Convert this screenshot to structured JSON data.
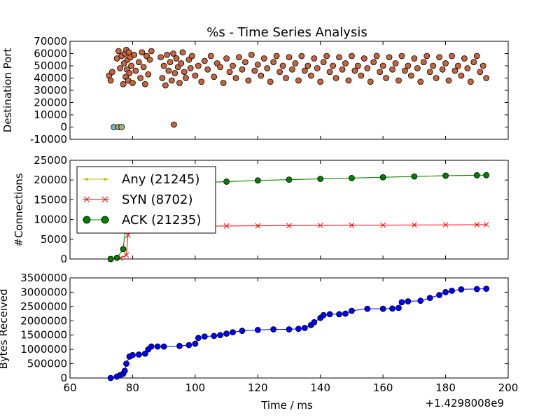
{
  "chart_data": [
    {
      "type": "scatter",
      "title": "%s - Time Series Analysis",
      "ylabel": "Destination Port",
      "xlim": [
        60,
        200
      ],
      "ylim": [
        -10000,
        70000
      ],
      "yticks": [
        "-10000",
        "0",
        "10000",
        "20000",
        "30000",
        "40000",
        "50000",
        "60000",
        "70000"
      ],
      "series": [
        {
          "color": "#c8643c",
          "points": [
            [
              72.5,
              42000
            ],
            [
              73,
              38000
            ],
            [
              73.5,
              45000
            ],
            [
              75,
              56000
            ],
            [
              75.5,
              62000
            ],
            [
              76,
              48000
            ],
            [
              76.5,
              58000
            ],
            [
              77,
              35000
            ],
            [
              77.3,
              52000
            ],
            [
              77.6,
              60000
            ],
            [
              77.8,
              41000
            ],
            [
              78,
              63000
            ],
            [
              78.2,
              47000
            ],
            [
              78.4,
              55000
            ],
            [
              78.6,
              38000
            ],
            [
              78.8,
              61000
            ],
            [
              79,
              44000
            ],
            [
              79.3,
              57000
            ],
            [
              79.6,
              50000
            ],
            [
              80,
              36000
            ],
            [
              80.5,
              59000
            ],
            [
              81,
              46000
            ],
            [
              82,
              53000
            ],
            [
              82.5,
              40000
            ],
            [
              83,
              61000
            ],
            [
              83.5,
              49000
            ],
            [
              84,
              35000
            ],
            [
              84.5,
              58000
            ],
            [
              85,
              43000
            ],
            [
              85.5,
              55000
            ],
            [
              86,
              62000
            ],
            [
              89,
              57000
            ],
            [
              89.5,
              40000
            ],
            [
              90,
              50000
            ],
            [
              90.5,
              34000
            ],
            [
              91,
              59000
            ],
            [
              91.5,
              46000
            ],
            [
              92,
              53000
            ],
            [
              92.5,
              38000
            ],
            [
              93,
              60000
            ],
            [
              93.2,
              2000
            ],
            [
              93.5,
              44000
            ],
            [
              94,
              56000
            ],
            [
              94.5,
              49000
            ],
            [
              95,
              36000
            ],
            [
              95.5,
              52000
            ],
            [
              96,
              61000
            ],
            [
              96.5,
              45000
            ],
            [
              97,
              40000
            ],
            [
              98,
              55000
            ],
            [
              98.5,
              48000
            ],
            [
              99,
              58000
            ],
            [
              100,
              42000
            ],
            [
              101,
              50000
            ],
            [
              102,
              37000
            ],
            [
              103,
              54000
            ],
            [
              104,
              47000
            ],
            [
              105,
              58000
            ],
            [
              106,
              41000
            ],
            [
              107,
              52000
            ],
            [
              108,
              49000
            ],
            [
              109,
              36000
            ],
            [
              110,
              56000
            ],
            [
              111,
              45000
            ],
            [
              112,
              50000
            ],
            [
              113,
              40000
            ],
            [
              114,
              57000
            ],
            [
              115,
              47000
            ],
            [
              116,
              53000
            ],
            [
              117,
              38000
            ],
            [
              118,
              59000
            ],
            [
              119,
              46000
            ],
            [
              120,
              51000
            ],
            [
              121,
              42000
            ],
            [
              122,
              56000
            ],
            [
              123,
              48000
            ],
            [
              124,
              37000
            ],
            [
              125,
              53000
            ],
            [
              126,
              58000
            ],
            [
              127,
              45000
            ],
            [
              128,
              50000
            ],
            [
              129,
              40000
            ],
            [
              130,
              57000
            ],
            [
              131,
              47000
            ],
            [
              132,
              52000
            ],
            [
              133,
              38000
            ],
            [
              134,
              58000
            ],
            [
              135,
              46000
            ],
            [
              136,
              50000
            ],
            [
              137,
              42000
            ],
            [
              138,
              56000
            ],
            [
              139,
              48000
            ],
            [
              140,
              37000
            ],
            [
              141,
              53000
            ],
            [
              142,
              58000
            ],
            [
              143,
              45000
            ],
            [
              144,
              50000
            ],
            [
              145,
              40000
            ],
            [
              146,
              57000
            ],
            [
              147,
              47000
            ],
            [
              148,
              52000
            ],
            [
              149,
              38000
            ],
            [
              150,
              58000
            ],
            [
              151,
              46000
            ],
            [
              152,
              50000
            ],
            [
              153,
              42000
            ],
            [
              154,
              56000
            ],
            [
              155,
              48000
            ],
            [
              156,
              37000
            ],
            [
              157,
              53000
            ],
            [
              158,
              58000
            ],
            [
              159,
              45000
            ],
            [
              160,
              50000
            ],
            [
              161,
              40000
            ],
            [
              162,
              57000
            ],
            [
              163,
              47000
            ],
            [
              164,
              52000
            ],
            [
              165,
              38000
            ],
            [
              166,
              58000
            ],
            [
              167,
              46000
            ],
            [
              168,
              50000
            ],
            [
              169,
              42000
            ],
            [
              170,
              56000
            ],
            [
              171,
              48000
            ],
            [
              172,
              37000
            ],
            [
              173,
              53000
            ],
            [
              174,
              58000
            ],
            [
              175,
              45000
            ],
            [
              176,
              50000
            ],
            [
              177,
              40000
            ],
            [
              178,
              57000
            ],
            [
              179,
              47000
            ],
            [
              180,
              52000
            ],
            [
              181,
              38000
            ],
            [
              182,
              58000
            ],
            [
              183,
              46000
            ],
            [
              184,
              50000
            ],
            [
              185,
              42000
            ],
            [
              186,
              56000
            ],
            [
              187,
              48000
            ],
            [
              188,
              37000
            ],
            [
              189,
              53000
            ],
            [
              190,
              58000
            ],
            [
              191,
              45000
            ],
            [
              192,
              50000
            ],
            [
              193,
              40000
            ]
          ]
        },
        {
          "color": "#6ab0d8",
          "points": [
            [
              74,
              0
            ]
          ]
        },
        {
          "color": "#c8a04a",
          "points": [
            [
              75.5,
              0
            ]
          ]
        },
        {
          "color": "#8fbc8f",
          "points": [
            [
              76.5,
              0
            ]
          ]
        }
      ]
    },
    {
      "type": "line",
      "ylabel": "#Connections",
      "xlim": [
        60,
        200
      ],
      "ylim": [
        0,
        25000
      ],
      "yticks": [
        "0",
        "5000",
        "10000",
        "15000",
        "20000",
        "25000"
      ],
      "legend": {
        "placement": "top-left"
      },
      "series": [
        {
          "name": "Any (21245)",
          "color": "#bfbf00",
          "marker": "dot",
          "x": [
            73,
            75,
            77,
            78,
            79,
            85,
            90,
            95,
            100,
            110,
            120,
            130,
            140,
            150,
            160,
            170,
            180,
            190,
            193
          ],
          "values": [
            0,
            300,
            2500,
            10000,
            15000,
            17500,
            18500,
            19000,
            19300,
            19600,
            19900,
            20100,
            20300,
            20500,
            20700,
            20900,
            21100,
            21200,
            21245
          ]
        },
        {
          "name": "SYN (8702)",
          "color": "#ff0000",
          "marker": "x",
          "x": [
            73,
            76,
            78,
            78.5,
            79,
            85,
            90,
            95,
            100,
            110,
            120,
            130,
            140,
            150,
            160,
            170,
            180,
            190,
            193
          ],
          "values": [
            0,
            200,
            1000,
            6000,
            8000,
            8200,
            8250,
            8300,
            8300,
            8350,
            8400,
            8450,
            8500,
            8550,
            8580,
            8620,
            8660,
            8690,
            8702
          ]
        },
        {
          "name": "ACK (21235)",
          "color": "#008000",
          "marker": "o",
          "x": [
            73,
            75,
            77,
            78,
            79,
            85,
            90,
            95,
            100,
            110,
            120,
            130,
            140,
            150,
            160,
            170,
            180,
            190,
            193
          ],
          "values": [
            0,
            300,
            2500,
            10000,
            15000,
            17500,
            18500,
            19000,
            19300,
            19600,
            19900,
            20100,
            20300,
            20500,
            20700,
            20900,
            21100,
            21200,
            21235
          ]
        }
      ]
    },
    {
      "type": "line",
      "ylabel": "Bytes Received",
      "xlabel": "Time / ms",
      "offset_label": "+1.4298008e9",
      "xlim": [
        60,
        200
      ],
      "ylim": [
        0,
        3500000
      ],
      "xticks": [
        "60",
        "80",
        "100",
        "120",
        "140",
        "160",
        "180",
        "200"
      ],
      "yticks": [
        "0",
        "500000",
        "1000000",
        "1500000",
        "2000000",
        "2500000",
        "3000000",
        "3500000"
      ],
      "series": [
        {
          "color": "#0000ff",
          "marker": "o",
          "x": [
            73,
            75,
            76,
            77,
            77.5,
            78,
            79,
            80,
            82,
            84,
            85,
            86,
            88,
            90,
            95,
            98,
            100,
            101,
            103,
            106,
            108,
            110,
            112,
            115,
            120,
            125,
            130,
            133,
            135,
            137,
            138,
            140,
            141,
            143,
            146,
            148,
            150,
            155,
            160,
            163,
            165,
            166,
            168,
            172,
            175,
            178,
            180,
            182,
            185,
            190,
            193
          ],
          "values": [
            0,
            50000,
            100000,
            150000,
            250000,
            500000,
            750000,
            800000,
            820000,
            850000,
            1000000,
            1100000,
            1100000,
            1100000,
            1120000,
            1150000,
            1200000,
            1400000,
            1450000,
            1470000,
            1500000,
            1550000,
            1600000,
            1650000,
            1680000,
            1700000,
            1700000,
            1720000,
            1750000,
            1850000,
            1950000,
            2100000,
            2200000,
            2230000,
            2230000,
            2250000,
            2350000,
            2420000,
            2420000,
            2430000,
            2450000,
            2650000,
            2680000,
            2700000,
            2800000,
            2900000,
            3000000,
            3050000,
            3100000,
            3110000,
            3120000
          ]
        }
      ]
    }
  ]
}
